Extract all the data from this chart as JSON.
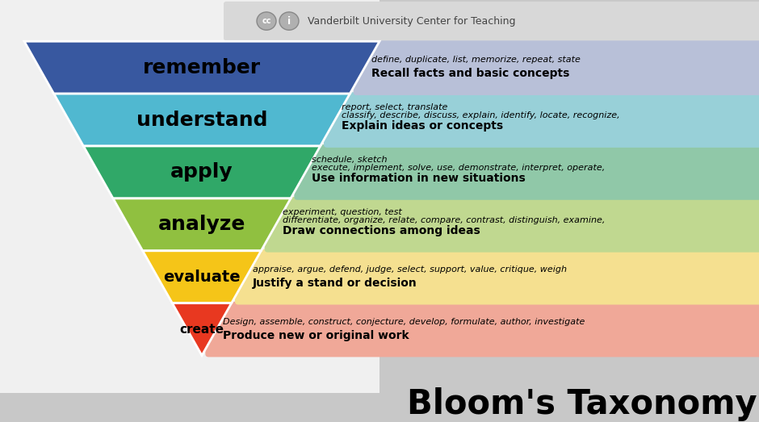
{
  "title": "Bloom's Taxonomy",
  "background_color": "#c8c8c8",
  "left_bg": "#e8e8e8",
  "levels": [
    {
      "name": "create",
      "color": "#e83820",
      "text_color": "#000000",
      "band_color": "#f0a898",
      "heading": "Produce new or original work",
      "detail": "Design, assemble, construct, conjecture, develop, formulate, author, investigate",
      "detail2": ""
    },
    {
      "name": "evaluate",
      "color": "#f5c518",
      "text_color": "#000000",
      "band_color": "#f5e090",
      "heading": "Justify a stand or decision",
      "detail": "appraise, argue, defend, judge, select, support, value, critique, weigh",
      "detail2": ""
    },
    {
      "name": "analyze",
      "color": "#90c040",
      "text_color": "#000000",
      "band_color": "#c0d890",
      "heading": "Draw connections among ideas",
      "detail": "differentiate, organize, relate, compare, contrast, distinguish, examine,",
      "detail2": "experiment, question, test"
    },
    {
      "name": "apply",
      "color": "#30a868",
      "text_color": "#000000",
      "band_color": "#90c8a8",
      "heading": "Use information in new situations",
      "detail": "execute, implement, solve, use, demonstrate, interpret, operate,",
      "detail2": "schedule, sketch"
    },
    {
      "name": "understand",
      "color": "#50b8d0",
      "text_color": "#000000",
      "band_color": "#98d0d8",
      "heading": "Explain ideas or concepts",
      "detail": "classify, describe, discuss, explain, identify, locate, recognize,",
      "detail2": "report, select, translate"
    },
    {
      "name": "remember",
      "color": "#3858a0",
      "text_color": "#000000",
      "band_color": "#b8c0d8",
      "heading": "Recall facts and basic concepts",
      "detail": "define, duplicate, list, memorize, repeat, state",
      "detail2": ""
    }
  ],
  "footer": "Vanderbilt University Center for Teaching",
  "footer_bg": "#d8d8d8"
}
